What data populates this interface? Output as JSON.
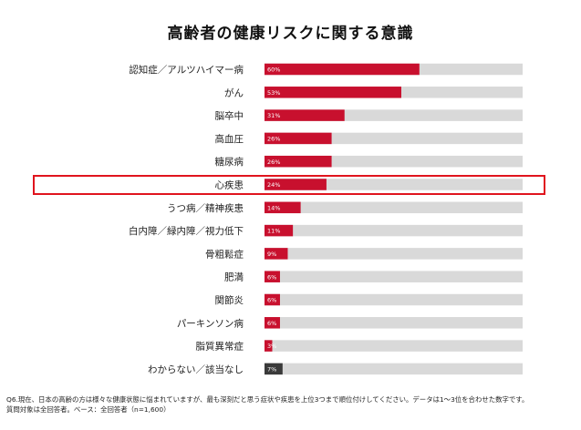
{
  "title": "高齢者の健康リスクに関する意識",
  "chart_data": {
    "type": "bar",
    "orientation": "horizontal",
    "title": "高齢者の健康リスクに関する意識",
    "categories": [
      "認知症／アルツハイマー病",
      "がん",
      "脳卒中",
      "高血圧",
      "糖尿病",
      "心疾患",
      "うつ病／精神疾患",
      "白内障／緑内障／視力低下",
      "骨粗鬆症",
      "肥満",
      "関節炎",
      "パーキンソン病",
      "脂質異常症",
      "わからない／該当なし"
    ],
    "values": [
      60,
      53,
      31,
      26,
      26,
      24,
      14,
      11,
      9,
      6,
      6,
      6,
      3,
      7
    ],
    "value_labels": [
      "60%",
      "53%",
      "31%",
      "26%",
      "26%",
      "24%",
      "14%",
      "11%",
      "9%",
      "6%",
      "6%",
      "6%",
      "3%",
      "7%"
    ],
    "xlim": [
      0,
      100
    ],
    "highlighted_category": "心疾患",
    "colors": {
      "bar": "#c8102e",
      "bar_other": "#3a3a3a",
      "track": "#d9d9d9",
      "highlight_box": "#e0141e"
    }
  },
  "footnote": {
    "line1": "Q6.現在、日本の高齢の方は様々な健康状態に悩まれていますが、最も深刻だと思う症状や疾患を上位3つまで順位付けしてください。データは1～3位を合わせた数字です。",
    "line2": "質問対象は全回答者。ベース：全回答者（n=1,600）"
  }
}
